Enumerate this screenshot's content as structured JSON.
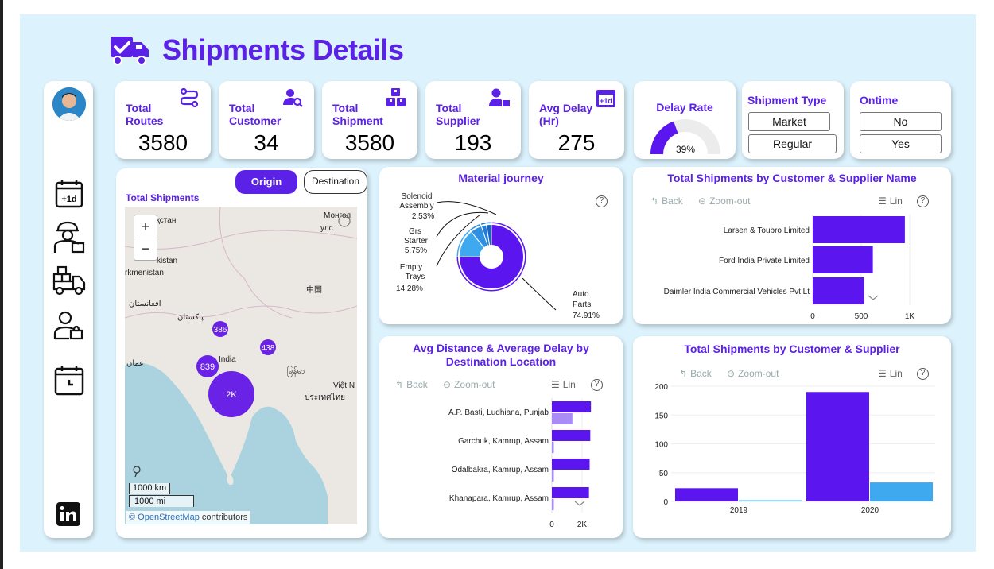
{
  "header": {
    "title": "Shipments Details"
  },
  "kpis": [
    {
      "title_line1": "Total",
      "title_line2": "Routes",
      "value": "3580",
      "icon": "route-icon"
    },
    {
      "title_line1": "Total",
      "title_line2": "Customer",
      "value": "34",
      "icon": "customer-search-icon"
    },
    {
      "title_line1": "Total",
      "title_line2": "Shipment",
      "value": "3580",
      "icon": "boxes-icon"
    },
    {
      "title_line1": "Total",
      "title_line2": "Supplier",
      "value": "193",
      "icon": "supplier-icon"
    },
    {
      "title_line1": "Avg Delay",
      "title_line2": "(Hr)",
      "value": "275",
      "icon": "calendar-plus1d-icon"
    }
  ],
  "delay_rate": {
    "title": "Delay Rate",
    "value_label": "39%",
    "value": 0.39
  },
  "shipment_type": {
    "title": "Shipment Type",
    "options": [
      "Market",
      "Regular"
    ]
  },
  "ontime": {
    "title": "Ontime",
    "options": [
      "No",
      "Yes"
    ]
  },
  "map": {
    "title": "Total Shipments",
    "origin_label": "Origin",
    "destination_label": "Destination",
    "zoom_in": "+",
    "zoom_out": "−",
    "scale_km": "1000 km",
    "scale_mi": "1000 mi",
    "attribution_link": "© OpenStreetMap",
    "attribution_rest": "contributors",
    "place_labels": [
      "Қазақстан",
      "Монгол",
      "улс",
      "kistan",
      "rkmenistan",
      "中国",
      "افغانستان",
      "پاکستان",
      "India",
      "عمان",
      "မြန်မာ",
      "Việt N",
      "ประเทศไทย"
    ],
    "clusters": [
      {
        "label": "386"
      },
      {
        "label": "438"
      },
      {
        "label": "839"
      },
      {
        "label": "2K"
      }
    ]
  },
  "material_journey": {
    "title": "Material journey",
    "help": "?",
    "chart_data": {
      "type": "pie",
      "title": "Material journey",
      "slices": [
        {
          "name": "Auto Parts",
          "value": 74.91,
          "label": "74.91%"
        },
        {
          "name": "Empty Trays",
          "value": 14.28,
          "label": "14.28%"
        },
        {
          "name": "Grs Starter",
          "value": 5.75,
          "label": "5.75%"
        },
        {
          "name": "Solenoid Assembly",
          "value": 2.53,
          "label": "2.53%"
        },
        {
          "name": "",
          "value": 2.53,
          "label": ""
        }
      ]
    },
    "labels": {
      "solenoid": [
        "Solenoid",
        "Assembly",
        "2.53%"
      ],
      "grs": [
        "Grs",
        "Starter",
        "5.75%"
      ],
      "empty": [
        "Empty",
        "Trays",
        "14.28%"
      ],
      "auto": [
        "Auto",
        "Parts",
        "74.91%"
      ]
    }
  },
  "customer_supplier_name": {
    "title": "Total Shipments by Customer & Supplier Name",
    "back": "Back",
    "zoom_out": "Zoom-out",
    "lin": "Lin",
    "help": "?",
    "chart_data": {
      "type": "bar",
      "orientation": "horizontal",
      "categories": [
        "Larsen & Toubro Limited",
        "Ford India Private Limited",
        "Daimler India Commercial Vehicles Pvt Lt"
      ],
      "values": [
        950,
        620,
        530
      ],
      "xlim": [
        0,
        1000
      ],
      "xticks": [
        "0",
        "500",
        "1K"
      ]
    }
  },
  "avg_distance_delay": {
    "title_line1": "Avg Distance & Average Delay by",
    "title_line2": "Destination Location",
    "back": "Back",
    "zoom_out": "Zoom-out",
    "lin": "Lin",
    "help": "?",
    "chart_data": {
      "type": "bar",
      "orientation": "horizontal",
      "categories": [
        "A.P. Basti, Ludhiana, Punjab",
        "Garchuk, Kamrup, Assam",
        "Odalbakra, Kamrup, Assam",
        "Khanapara, Kamrup, Assam"
      ],
      "series": [
        {
          "values": [
            2950,
            2900,
            2850,
            2800
          ]
        },
        {
          "values": [
            1550,
            150,
            150,
            150
          ]
        }
      ],
      "xlim": [
        0,
        3300
      ],
      "xticks": [
        "0",
        "2K"
      ]
    }
  },
  "customer_supplier_year": {
    "title": "Total Shipments by Customer & Supplier",
    "back": "Back",
    "zoom_out": "Zoom-out",
    "lin": "Lin",
    "help": "?",
    "chart_data": {
      "type": "bar",
      "categories": [
        "2019",
        "2020"
      ],
      "series": [
        {
          "values": [
            23,
            190
          ],
          "color": "#5b16f0"
        },
        {
          "values": [
            2,
            33
          ],
          "color": "#3fa9f0"
        }
      ],
      "ylim": [
        0,
        200
      ],
      "yticks": [
        "0",
        "50",
        "100",
        "150",
        "200"
      ]
    }
  }
}
